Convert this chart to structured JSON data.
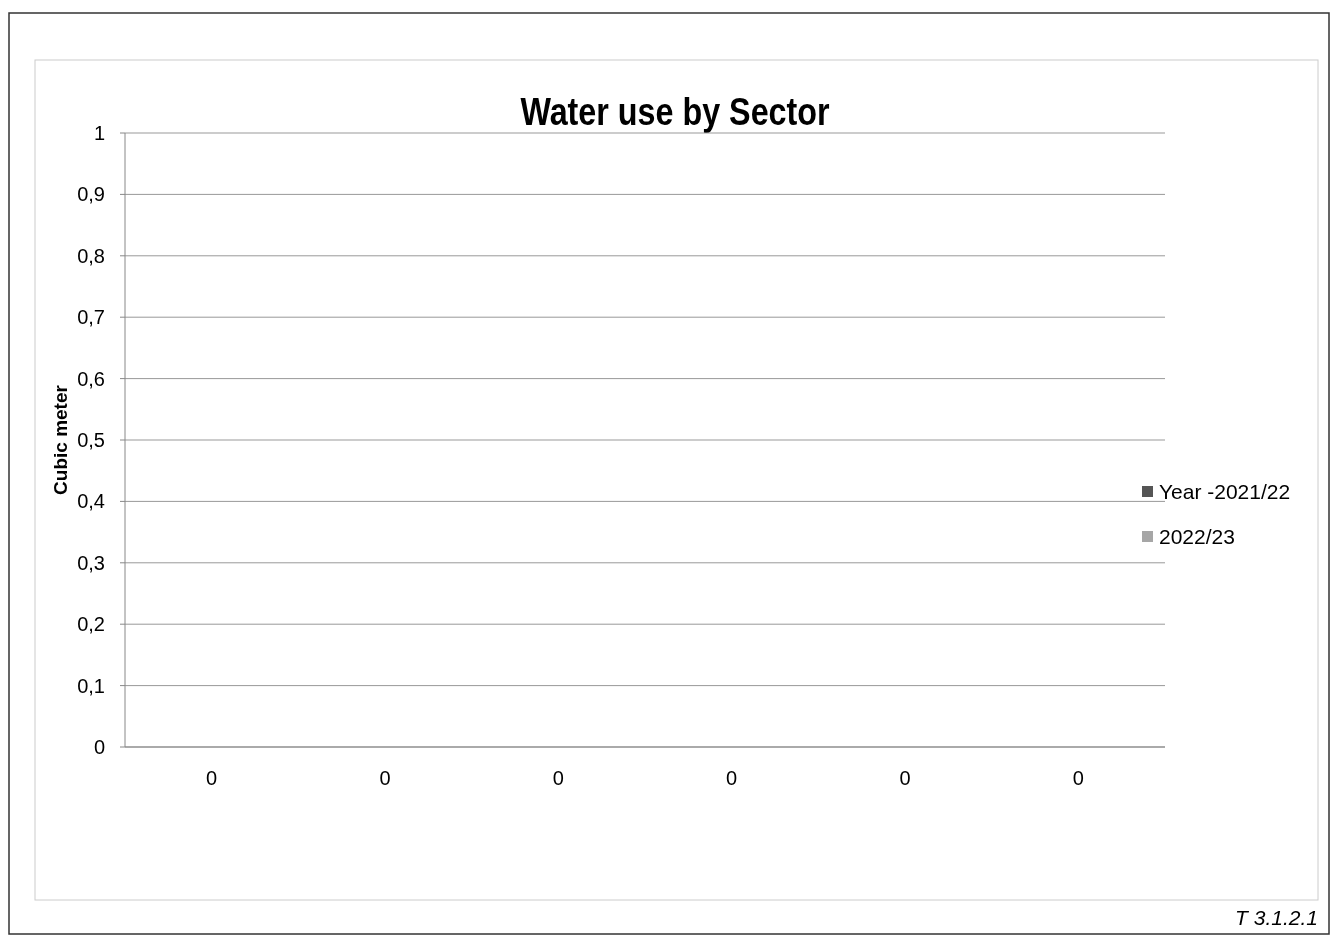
{
  "chart_data": {
    "type": "bar",
    "title": "Water use by Sector",
    "ylabel": "Cubic meter",
    "categories": [
      "0",
      "0",
      "0",
      "0",
      "0",
      "0"
    ],
    "series": [
      {
        "name": "Year -2021/22",
        "color": "#555555",
        "values": [
          0,
          0,
          0,
          0,
          0,
          0
        ]
      },
      {
        "name": "2022/23",
        "color": "#a6a6a6",
        "values": [
          0,
          0,
          0,
          0,
          0,
          0
        ]
      }
    ],
    "ylim": [
      0,
      1
    ],
    "yticks": [
      {
        "value": 0,
        "label": "0"
      },
      {
        "value": 0.1,
        "label": "0,1"
      },
      {
        "value": 0.2,
        "label": "0,2"
      },
      {
        "value": 0.3,
        "label": "0,3"
      },
      {
        "value": 0.4,
        "label": "0,4"
      },
      {
        "value": 0.5,
        "label": "0,5"
      },
      {
        "value": 0.6,
        "label": "0,6"
      },
      {
        "value": 0.7,
        "label": "0,7"
      },
      {
        "value": 0.8,
        "label": "0,8"
      },
      {
        "value": 0.9,
        "label": "0,9"
      },
      {
        "value": 1,
        "label": "1"
      }
    ],
    "grid": "y",
    "legend": "right",
    "annotations": [
      "T 3.1.2.1"
    ]
  }
}
